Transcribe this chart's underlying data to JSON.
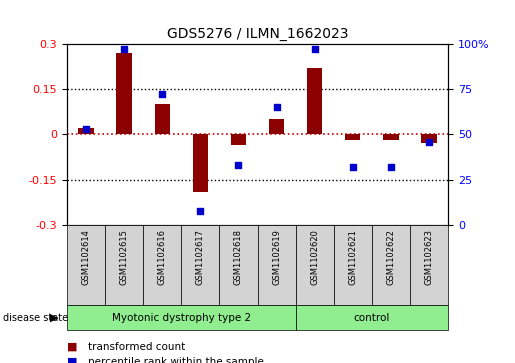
{
  "title": "GDS5276 / ILMN_1662023",
  "samples": [
    "GSM1102614",
    "GSM1102615",
    "GSM1102616",
    "GSM1102617",
    "GSM1102618",
    "GSM1102619",
    "GSM1102620",
    "GSM1102621",
    "GSM1102622",
    "GSM1102623"
  ],
  "transformed_count": [
    0.02,
    0.27,
    0.1,
    -0.19,
    -0.035,
    0.05,
    0.22,
    -0.02,
    -0.02,
    -0.03
  ],
  "percentile_rank": [
    53,
    97,
    72,
    8,
    33,
    65,
    97,
    32,
    32,
    46
  ],
  "ylim_left": [
    -0.3,
    0.3
  ],
  "ylim_right": [
    0,
    100
  ],
  "yticks_left": [
    -0.3,
    -0.15,
    0.0,
    0.15,
    0.3
  ],
  "yticks_right": [
    0,
    25,
    50,
    75,
    100
  ],
  "ytick_labels_left": [
    "-0.3",
    "-0.15",
    "0",
    "0.15",
    "0.3"
  ],
  "ytick_labels_right": [
    "0",
    "25",
    "50",
    "75",
    "100%"
  ],
  "disease_groups": [
    {
      "label": "Myotonic dystrophy type 2",
      "start": 0,
      "end": 6,
      "color": "#90ee90"
    },
    {
      "label": "control",
      "start": 6,
      "end": 10,
      "color": "#90ee90"
    }
  ],
  "bar_color": "#8B0000",
  "dot_color": "#0000CD",
  "zero_line_color": "#CC0000",
  "dotted_line_color": "#000000",
  "background_plot": "#ffffff",
  "background_sample": "#d3d3d3",
  "figsize": [
    5.15,
    3.63
  ],
  "dpi": 100
}
